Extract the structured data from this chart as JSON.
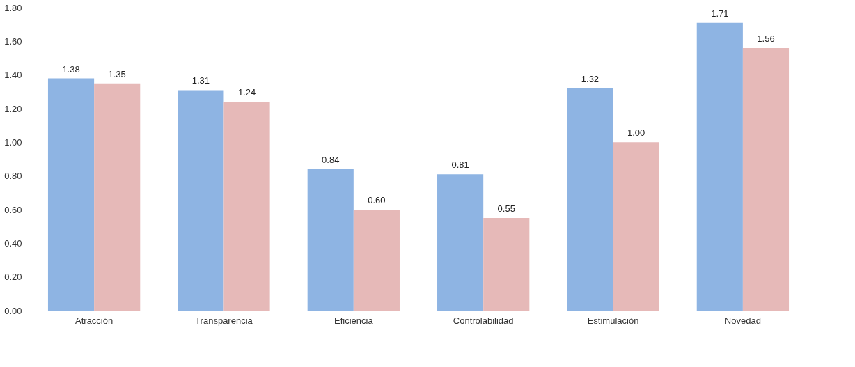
{
  "chart_data": {
    "type": "bar",
    "categories": [
      "Atracción",
      "Transparencia",
      "Eficiencia",
      "Controlabilidad",
      "Estimulación",
      "Novedad"
    ],
    "series": [
      {
        "color": "#8eb4e3",
        "values": [
          1.38,
          1.31,
          0.84,
          0.81,
          1.32,
          1.71
        ],
        "value_labels": [
          "1.38",
          "1.31",
          "0.84",
          "0.81",
          "1.32",
          "1.71"
        ]
      },
      {
        "color": "#e6b9b8",
        "values": [
          1.35,
          1.24,
          0.6,
          0.55,
          1.0,
          1.56
        ],
        "value_labels": [
          "1.35",
          "1.24",
          "0.60",
          "0.55",
          "1.00",
          "1.56"
        ]
      }
    ],
    "ylim": [
      0,
      1.8
    ],
    "yticks": [
      {
        "value": 0,
        "label": "0.00"
      },
      {
        "value": 0.2,
        "label": "0.20"
      },
      {
        "value": 0.4,
        "label": "0.40"
      },
      {
        "value": 0.6,
        "label": "0.60"
      },
      {
        "value": 0.8,
        "label": "0.80"
      },
      {
        "value": 1,
        "label": "1.00"
      },
      {
        "value": 1.2,
        "label": "1.20"
      },
      {
        "value": 1.4,
        "label": "1.40"
      },
      {
        "value": 1.6,
        "label": "1.60"
      },
      {
        "value": 1.8,
        "label": "1.80"
      }
    ],
    "grid": false,
    "legend": false
  }
}
